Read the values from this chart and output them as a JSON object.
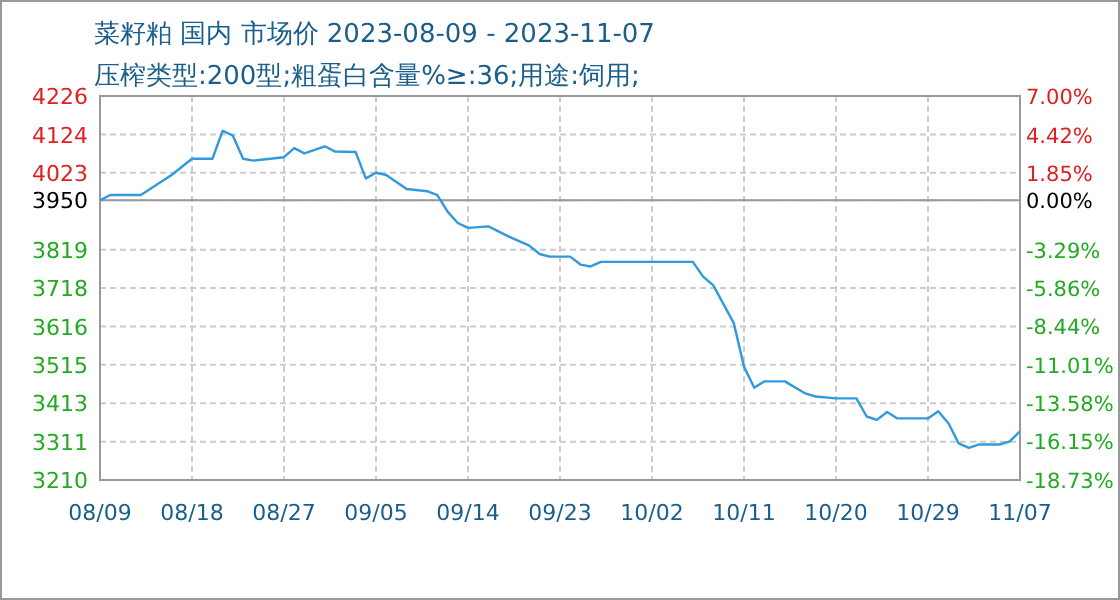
{
  "chart_data": {
    "type": "line",
    "title": "菜籽粕 国内 市场价 2023-08-09 - 2023-11-07",
    "subtitle": "压榨类型:200型;粗蛋白含量%≥:36;用途:饲用;",
    "x": [
      "2023-08-09",
      "2023-08-10",
      "2023-08-13",
      "2023-08-16",
      "2023-08-18",
      "2023-08-20",
      "2023-08-21",
      "2023-08-22",
      "2023-08-23",
      "2023-08-24",
      "2023-08-27",
      "2023-08-28",
      "2023-08-29",
      "2023-08-31",
      "2023-09-01",
      "2023-09-03",
      "2023-09-04",
      "2023-09-05",
      "2023-09-06",
      "2023-09-08",
      "2023-09-10",
      "2023-09-11",
      "2023-09-12",
      "2023-09-13",
      "2023-09-14",
      "2023-09-16",
      "2023-09-18",
      "2023-09-20",
      "2023-09-21",
      "2023-09-22",
      "2023-09-24",
      "2023-09-25",
      "2023-09-26",
      "2023-09-27",
      "2023-10-06",
      "2023-10-07",
      "2023-10-08",
      "2023-10-10",
      "2023-10-11",
      "2023-10-12",
      "2023-10-13",
      "2023-10-15",
      "2023-10-17",
      "2023-10-18",
      "2023-10-20",
      "2023-10-22",
      "2023-10-23",
      "2023-10-24",
      "2023-10-25",
      "2023-10-26",
      "2023-10-29",
      "2023-10-30",
      "2023-10-31",
      "2023-11-01",
      "2023-11-02",
      "2023-11-03",
      "2023-11-05",
      "2023-11-06",
      "2023-11-07"
    ],
    "series": [
      {
        "color": "#3399dd",
        "values": [
          3950,
          3964,
          3964,
          4017,
          4060,
          4060,
          4134,
          4121,
          4060,
          4055,
          4064,
          4088,
          4074,
          4093,
          4079,
          4078,
          4008,
          4023,
          4017,
          3980,
          3974,
          3964,
          3920,
          3890,
          3877,
          3881,
          3854,
          3830,
          3808,
          3801,
          3801,
          3780,
          3775,
          3787,
          3787,
          3748,
          3725,
          3625,
          3510,
          3454,
          3471,
          3471,
          3439,
          3431,
          3426,
          3426,
          3378,
          3369,
          3390,
          3373,
          3373,
          3392,
          3360,
          3307,
          3295,
          3304,
          3304,
          3312,
          3339
        ]
      }
    ],
    "xlim": [
      "2023-08-09",
      "2023-11-07"
    ],
    "xticks": [
      {
        "value": "2023-08-09",
        "label": "08/09"
      },
      {
        "value": "2023-08-18",
        "label": "08/18"
      },
      {
        "value": "2023-08-27",
        "label": "08/27"
      },
      {
        "value": "2023-09-05",
        "label": "09/05"
      },
      {
        "value": "2023-09-14",
        "label": "09/14"
      },
      {
        "value": "2023-09-23",
        "label": "09/23"
      },
      {
        "value": "2023-10-02",
        "label": "10/02"
      },
      {
        "value": "2023-10-11",
        "label": "10/11"
      },
      {
        "value": "2023-10-20",
        "label": "10/20"
      },
      {
        "value": "2023-10-29",
        "label": "10/29"
      },
      {
        "value": "2023-11-07",
        "label": "11/07"
      }
    ],
    "ylim": [
      3210,
      4226
    ],
    "yticks": [
      4226,
      4124,
      4023,
      3950,
      3819,
      3718,
      3616,
      3515,
      3413,
      3311,
      3210
    ],
    "y2lim": [
      -18.73,
      7.0
    ],
    "y2ticks": [
      {
        "value": 7.0,
        "label": "7.00%"
      },
      {
        "value": 4.42,
        "label": "4.42%"
      },
      {
        "value": 1.85,
        "label": "1.85%"
      },
      {
        "value": 0,
        "label": "0.00%"
      },
      {
        "value": -3.29,
        "label": "-3.29%"
      },
      {
        "value": -5.86,
        "label": "-5.86%"
      },
      {
        "value": -8.44,
        "label": "-8.44%"
      },
      {
        "value": -11.01,
        "label": "-11.01%"
      },
      {
        "value": -13.58,
        "label": "-13.58%"
      },
      {
        "value": -16.15,
        "label": "-16.15%"
      },
      {
        "value": -18.73,
        "label": "-18.73%"
      }
    ],
    "ref_lines": [
      {
        "axis": "y",
        "value": 3950,
        "color": "#999999",
        "line_style": "solid"
      }
    ],
    "grid": true,
    "line_style": "solid"
  }
}
